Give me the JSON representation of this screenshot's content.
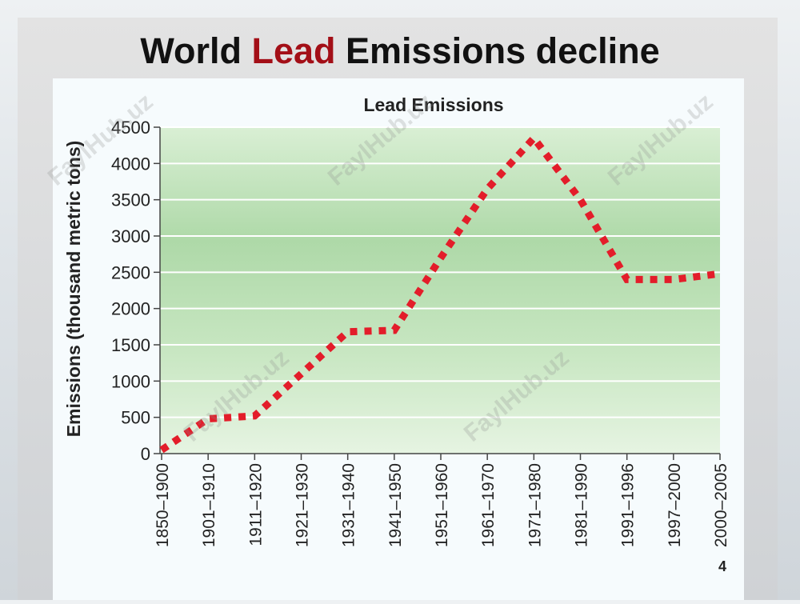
{
  "slide": {
    "title_part1": "World ",
    "title_accent": "Lead",
    "title_part2": " Emissions decline",
    "page_number": "4",
    "watermark": "FaylHub.uz",
    "accent_color": "#a30f17"
  },
  "chart_data": {
    "type": "line",
    "title": "Lead Emissions",
    "xlabel": "",
    "ylabel": "Emissions (thousand metric tons)",
    "ylim": [
      0,
      4500
    ],
    "yticks": [
      0,
      500,
      1000,
      1500,
      2000,
      2500,
      3000,
      3500,
      4000,
      4500
    ],
    "grid": true,
    "categories": [
      "1850–1900",
      "1901–1910",
      "1911–1920",
      "1921–1930",
      "1931–1940",
      "1941–1950",
      "1951–1960",
      "1961–1970",
      "1971–1980",
      "1981–1990",
      "1991–1996",
      "1997–2000",
      "2000–2005"
    ],
    "series": [
      {
        "color": "#e31d2a",
        "style": "dotted",
        "points": [
          {
            "x": "1850–1900",
            "y": 50
          },
          {
            "x": "1901–1910",
            "y": 480
          },
          {
            "x": "1911–1920",
            "y": 520
          },
          {
            "x": "1921–1930",
            "y": 1100
          },
          {
            "x": "1931–1940",
            "y": 1680
          },
          {
            "x": "1941–1950",
            "y": 1700
          },
          {
            "x": "1951–1960",
            "y": 2700
          },
          {
            "x": "1961–1970",
            "y": 3650
          },
          {
            "x": "1971–1980",
            "y": 4350
          },
          {
            "x": "1981–1990",
            "y": 3500
          },
          {
            "x": "1991–1996",
            "y": 2400
          },
          {
            "x": "1997–2000",
            "y": 2400
          },
          {
            "x": "2000–2005",
            "y": 2480
          }
        ]
      }
    ]
  }
}
